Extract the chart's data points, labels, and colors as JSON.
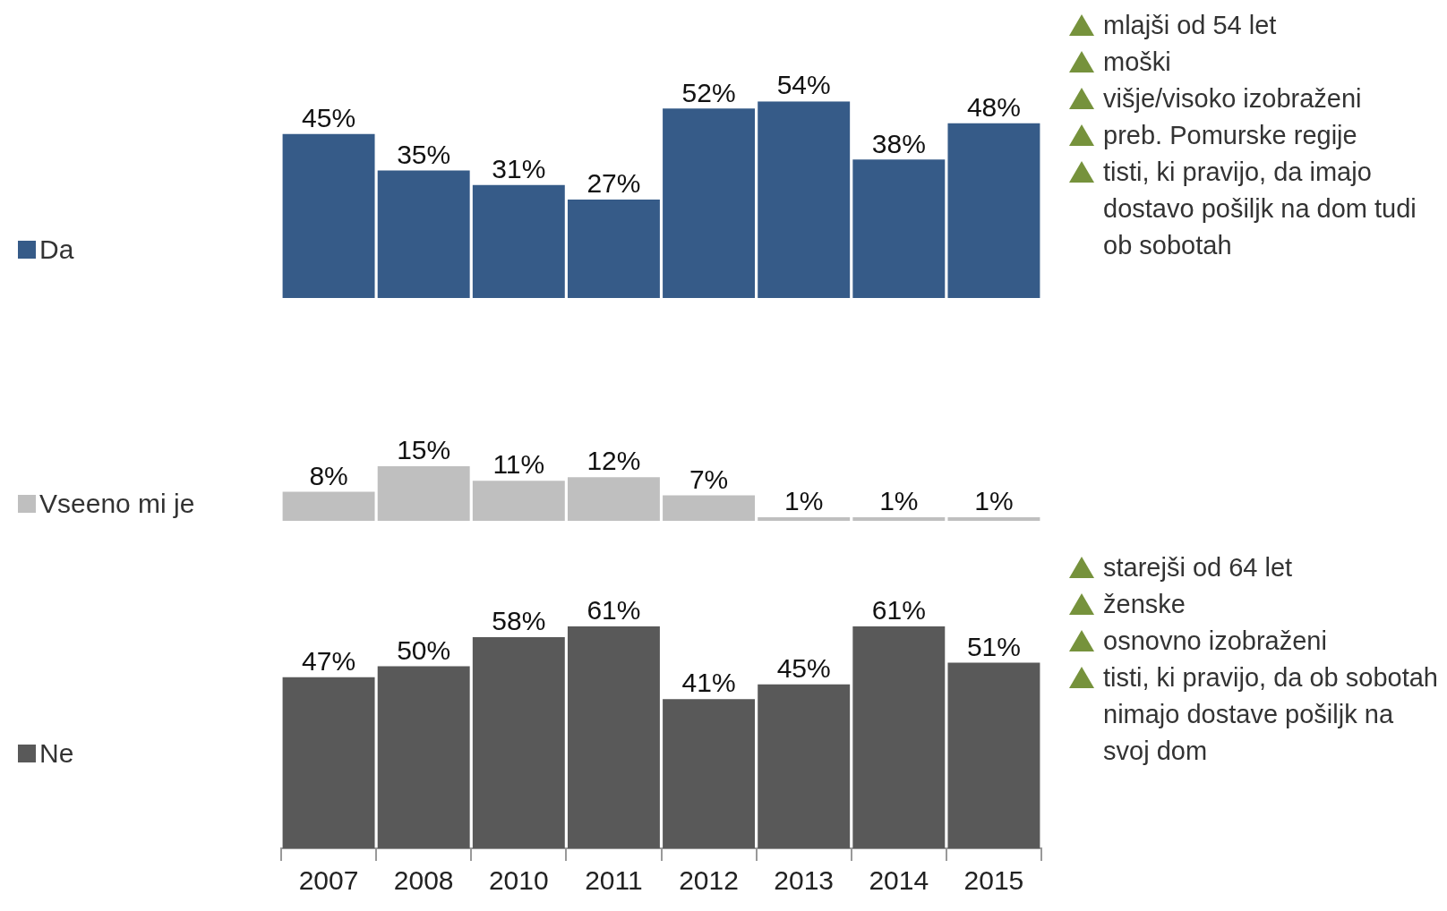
{
  "chart_data": [
    {
      "type": "bar",
      "categories": [
        "2007",
        "2008",
        "2010",
        "2011",
        "2012",
        "2013",
        "2014",
        "2015"
      ],
      "series": [
        {
          "name": "Da",
          "color": "#365b88",
          "values": [
            45,
            35,
            31,
            27,
            52,
            54,
            38,
            48
          ],
          "value_labels": [
            "45%",
            "35%",
            "31%",
            "27%",
            "52%",
            "54%",
            "38%",
            "48%"
          ]
        }
      ],
      "legend": "left",
      "tick_labels": false,
      "annotations": [
        "mlajši od 54 let",
        "moški",
        "višje/visoko izobraženi",
        "preb. Pomurske regije",
        "tisti, ki pravijo, da imajo dostavo pošiljk na dom tudi ob sobotah"
      ]
    },
    {
      "type": "bar",
      "categories": [
        "2007",
        "2008",
        "2010",
        "2011",
        "2012",
        "2013",
        "2014",
        "2015"
      ],
      "series": [
        {
          "name": "Vseeno mi je",
          "color": "#bfbfbf",
          "values": [
            8,
            15,
            11,
            12,
            7,
            1,
            1,
            1
          ],
          "value_labels": [
            "8%",
            "15%",
            "11%",
            "12%",
            "7%",
            "1%",
            "1%",
            "1%"
          ]
        }
      ],
      "legend": "left",
      "tick_labels": false
    },
    {
      "type": "bar",
      "categories": [
        "2007",
        "2008",
        "2010",
        "2011",
        "2012",
        "2013",
        "2014",
        "2015"
      ],
      "series": [
        {
          "name": "Ne",
          "color": "#595959",
          "values": [
            47,
            50,
            58,
            61,
            41,
            45,
            61,
            51
          ],
          "value_labels": [
            "47%",
            "50%",
            "58%",
            "61%",
            "41%",
            "45%",
            "61%",
            "51%"
          ]
        }
      ],
      "legend": "left",
      "tick_labels": "x",
      "annotations": [
        "starejši od 64 let",
        "ženske",
        "osnovno izobraženi",
        "tisti, ki pravijo, da ob sobotah nimajo dostave pošiljk na svoj dom"
      ]
    }
  ]
}
